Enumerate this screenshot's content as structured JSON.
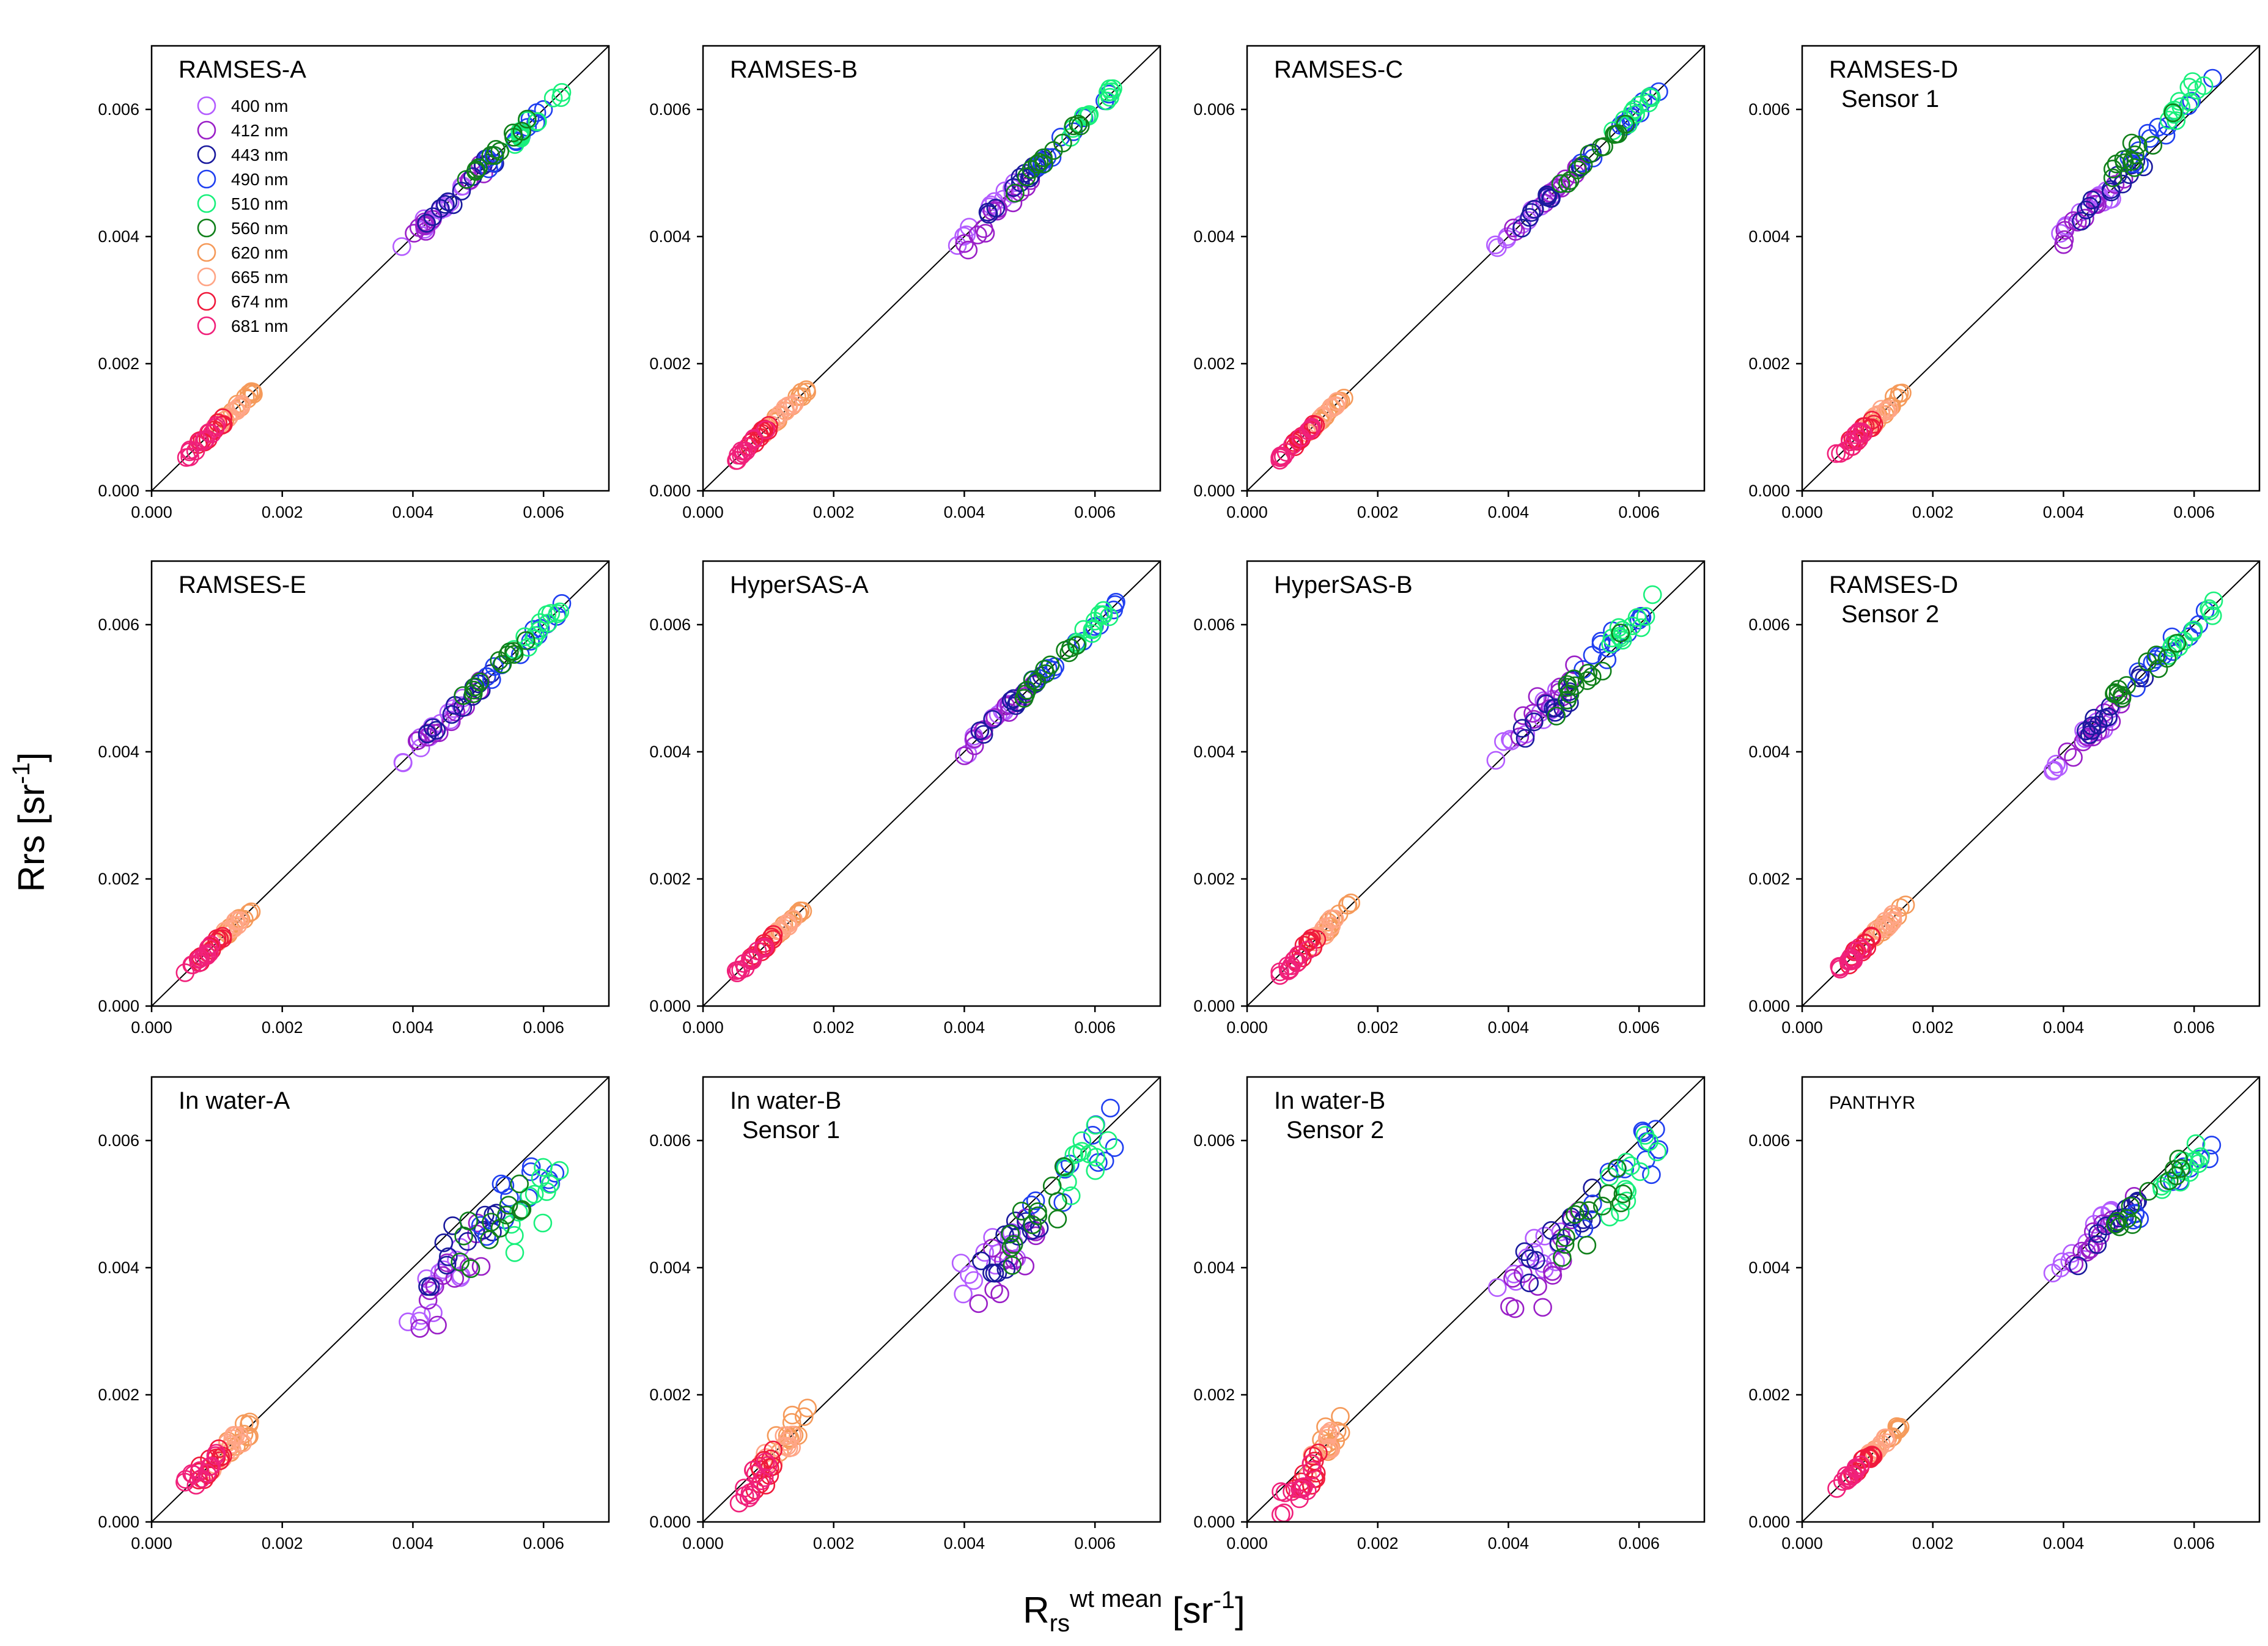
{
  "figure": {
    "ylabel": {
      "base": "Rrs [sr",
      "sup": "-1",
      "tail": "]"
    },
    "xlabel": {
      "base": "R",
      "sub": "rs",
      "sup1": "wt mean",
      "mid": " [sr",
      "sup2": "-1",
      "tail": "]"
    }
  },
  "chart_data": {
    "type": "scatter",
    "xlim": [
      0,
      0.007
    ],
    "ylim": [
      0,
      0.007
    ],
    "x_ticks": [
      "0.000",
      "0.002",
      "0.004",
      "0.006"
    ],
    "y_ticks": [
      "0.000",
      "0.002",
      "0.004",
      "0.006"
    ],
    "tick_values": [
      0,
      0.002,
      0.004,
      0.006
    ],
    "reference_line": "1:1",
    "legend": [
      {
        "label": "400 nm",
        "color": "#b35cff"
      },
      {
        "label": "412 nm",
        "color": "#9a1fc7"
      },
      {
        "label": "443 nm",
        "color": "#1a1a9e"
      },
      {
        "label": "490 nm",
        "color": "#1f3ff0"
      },
      {
        "label": "510 nm",
        "color": "#19f07c"
      },
      {
        "label": "560 nm",
        "color": "#10801a"
      },
      {
        "label": "620 nm",
        "color": "#f59a5a"
      },
      {
        "label": "665 nm",
        "color": "#ffa586"
      },
      {
        "label": "674 nm",
        "color": "#f01a3c"
      },
      {
        "label": "681 nm",
        "color": "#f0207a"
      }
    ],
    "panels": [
      {
        "title": [
          "RAMSES-A"
        ],
        "legend": true,
        "scatter": 0.00012,
        "bias": [
          0,
          0,
          0,
          0,
          0,
          0,
          0,
          0,
          0,
          0
        ]
      },
      {
        "title": [
          "RAMSES-B"
        ],
        "scatter": 0.0001,
        "bias": [
          0,
          -0.0002,
          0,
          0,
          0,
          0,
          0,
          0,
          0,
          0
        ]
      },
      {
        "title": [
          "RAMSES-C"
        ],
        "scatter": 8e-05,
        "bias": [
          0,
          0,
          0,
          0,
          0,
          0,
          0,
          0,
          0,
          0
        ]
      },
      {
        "title": [
          "RAMSES-D",
          "Sensor 1"
        ],
        "scatter": 0.00015,
        "bias": [
          0,
          0,
          0,
          0.0002,
          0.0004,
          0.0003,
          0,
          0,
          0,
          0
        ]
      },
      {
        "title": [
          "RAMSES-E"
        ],
        "scatter": 0.00012,
        "bias": [
          0,
          0,
          0,
          0,
          0,
          0,
          0,
          0,
          0,
          0
        ]
      },
      {
        "title": [
          "HyperSAS-A"
        ],
        "scatter": 0.0001,
        "bias": [
          0,
          0,
          0,
          0,
          0,
          0,
          0,
          0,
          0,
          0
        ]
      },
      {
        "title": [
          "HyperSAS-B"
        ],
        "scatter": 0.00018,
        "bias": [
          0.0002,
          0.0003,
          0,
          0.0002,
          0.0001,
          0,
          0,
          0,
          0,
          0
        ]
      },
      {
        "title": [
          "RAMSES-D",
          "Sensor 2"
        ],
        "scatter": 0.00015,
        "bias": [
          -0.0002,
          -0.0002,
          0,
          0,
          0,
          0,
          0,
          0,
          0,
          0
        ]
      },
      {
        "title": [
          "In water-A"
        ],
        "scatter": 0.0003,
        "bias": [
          -0.001,
          -0.0012,
          -0.0005,
          -0.0007,
          -0.0012,
          -0.0007,
          0,
          0,
          0,
          0
        ]
      },
      {
        "title": [
          "In water-B",
          "Sensor 1"
        ],
        "scatter": 0.0004,
        "bias": [
          -0.0004,
          -0.0008,
          -0.0003,
          -0.0002,
          -0.0002,
          -0.0004,
          0.0002,
          0,
          -0.0002,
          -0.0003
        ]
      },
      {
        "title": [
          "In water-B",
          "Sensor 2"
        ],
        "scatter": 0.0004,
        "bias": [
          -0.0004,
          -0.0008,
          -0.0003,
          -0.0004,
          -0.0006,
          -0.0006,
          0.0001,
          0,
          -0.0003,
          -0.0004
        ]
      },
      {
        "title": [
          "PANTHYR"
        ],
        "small": true,
        "scatter": 0.00012,
        "bias": [
          0.0002,
          0,
          -0.0001,
          -0.0004,
          -0.0004,
          -0.0003,
          0,
          0,
          0,
          0
        ]
      }
    ],
    "band_x_ranges": [
      [
        0.0038,
        0.0048
      ],
      [
        0.004,
        0.0051
      ],
      [
        0.0042,
        0.0053
      ],
      [
        0.005,
        0.0064
      ],
      [
        0.0055,
        0.0063
      ],
      [
        0.0047,
        0.0058
      ],
      [
        0.0011,
        0.0016
      ],
      [
        0.0009,
        0.0014
      ],
      [
        0.0007,
        0.0011
      ],
      [
        0.0005,
        0.001
      ]
    ]
  }
}
